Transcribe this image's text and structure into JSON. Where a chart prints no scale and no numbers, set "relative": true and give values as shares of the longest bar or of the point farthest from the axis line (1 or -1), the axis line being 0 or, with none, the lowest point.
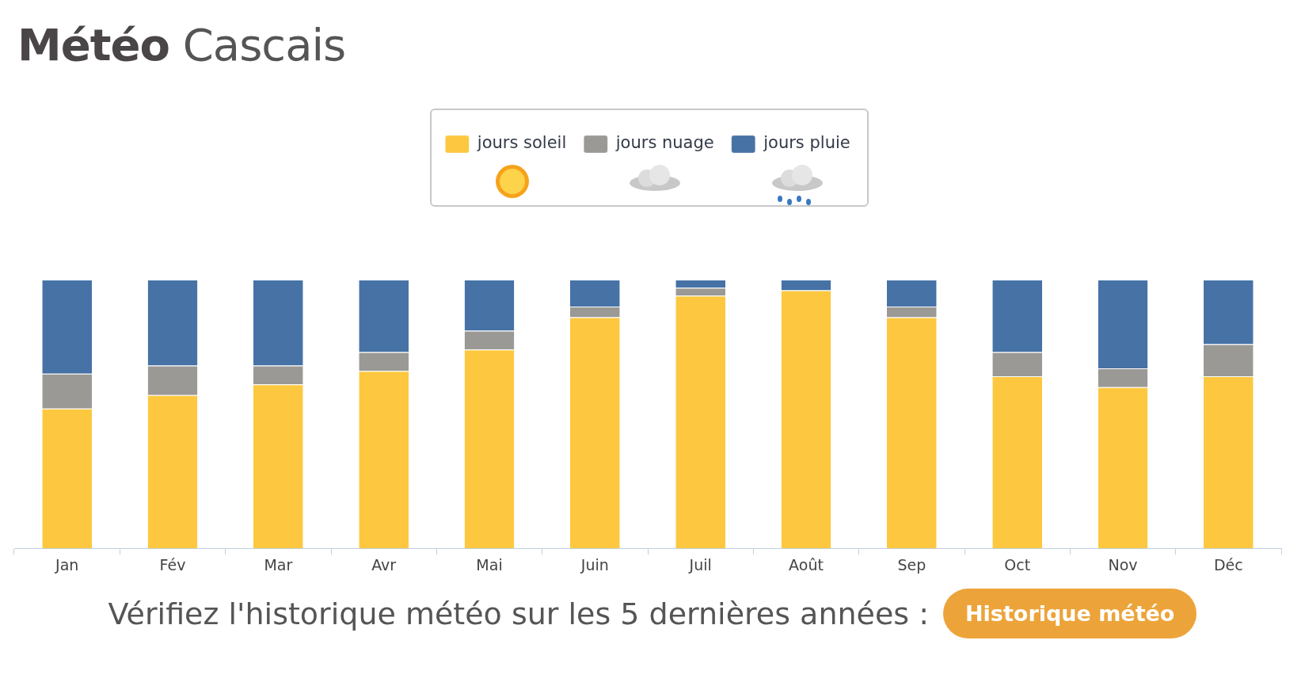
{
  "chart_data": {
    "type": "bar",
    "title": "Météo Cascais",
    "stacked": true,
    "relative": true,
    "legend": "top",
    "grid": false,
    "categories": [
      "Jan",
      "Fév",
      "Mar",
      "Avr",
      "Mai",
      "Juin",
      "Juil",
      "Août",
      "Sep",
      "Oct",
      "Nov",
      "Déc"
    ],
    "series": [
      {
        "name": "jours soleil",
        "color": "#fdc840",
        "values": [
          0.52,
          0.57,
          0.61,
          0.66,
          0.74,
          0.86,
          0.94,
          0.96,
          0.86,
          0.64,
          0.6,
          0.64
        ]
      },
      {
        "name": "jours nuage",
        "color": "#9a9995",
        "values": [
          0.13,
          0.11,
          0.07,
          0.07,
          0.07,
          0.04,
          0.03,
          0,
          0.04,
          0.09,
          0.07,
          0.12
        ]
      },
      {
        "name": "jours pluie",
        "color": "#4672a6",
        "values": [
          0.35,
          0.32,
          0.32,
          0.27,
          0.19,
          0.1,
          0.03,
          0.04,
          0.1,
          0.27,
          0.33,
          0.24
        ]
      }
    ],
    "annotations": [
      "Vérifiez l'historique météo sur les 5 dernières années :",
      "Historique météo"
    ]
  }
}
